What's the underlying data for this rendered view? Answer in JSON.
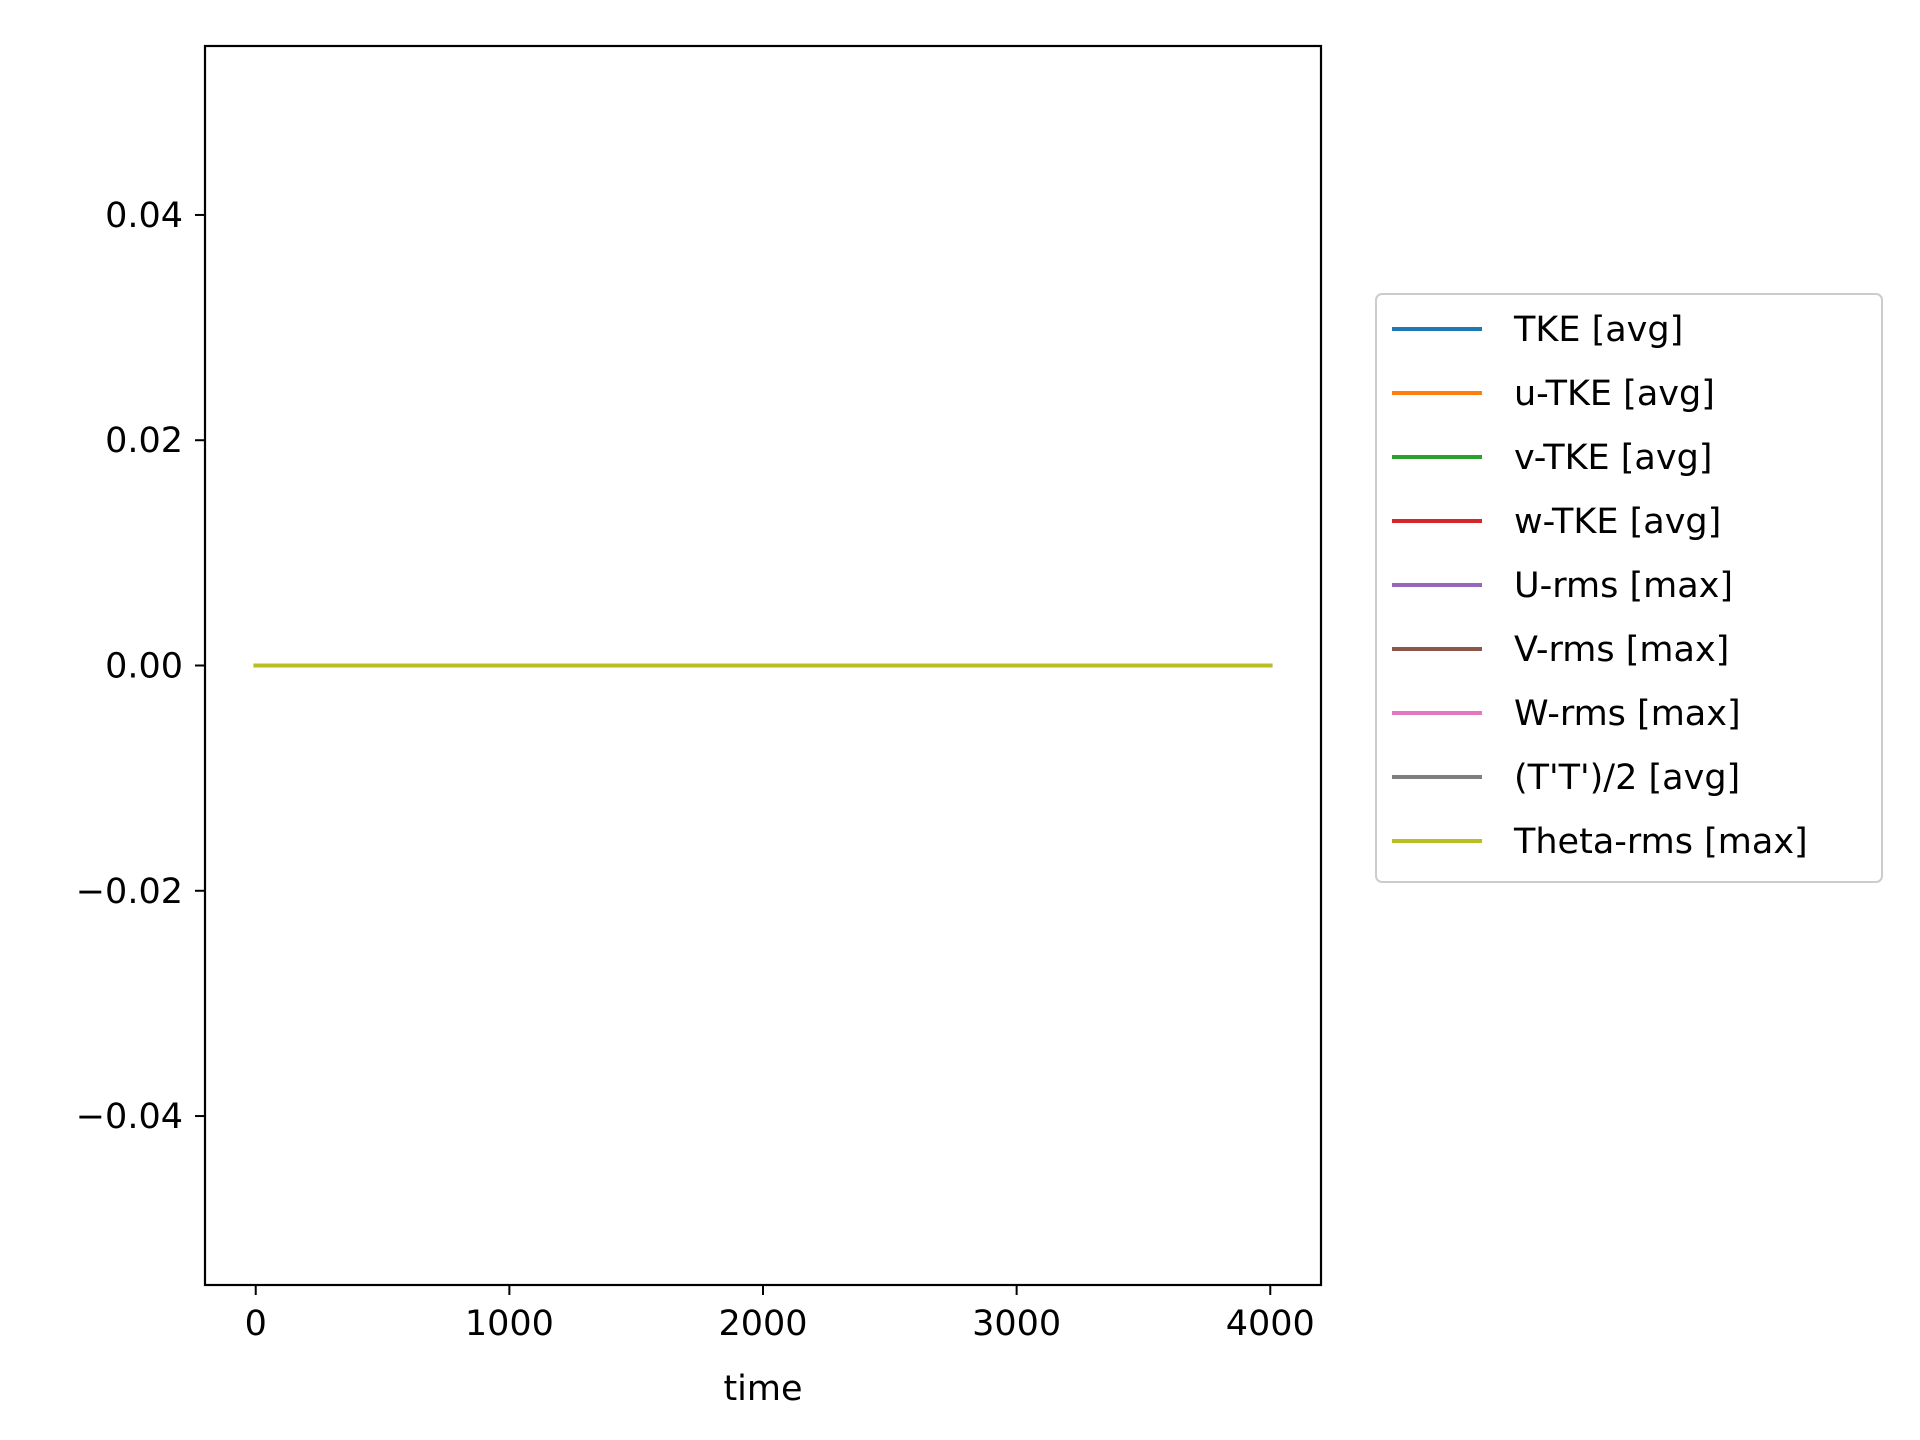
{
  "chart_data": {
    "type": "line",
    "title": "",
    "xlabel": "time",
    "ylabel": "",
    "xlim": [
      -200,
      4200
    ],
    "ylim": [
      -0.055,
      0.055
    ],
    "xticks": [
      0,
      1000,
      2000,
      3000,
      4000
    ],
    "xtick_labels": [
      "0",
      "1000",
      "2000",
      "3000",
      "4000"
    ],
    "yticks": [
      -0.04,
      -0.02,
      0.0,
      0.02,
      0.04
    ],
    "ytick_labels": [
      "−0.04",
      "−0.02",
      "0.00",
      "0.02",
      "0.04"
    ],
    "grid": false,
    "legend_position": "outside right",
    "x": [
      0,
      4000
    ],
    "series": [
      {
        "name": "TKE [avg]",
        "color": "#1f77b4",
        "values": [
          0,
          0
        ]
      },
      {
        "name": "u-TKE [avg]",
        "color": "#ff7f0e",
        "values": [
          0,
          0
        ]
      },
      {
        "name": "v-TKE [avg]",
        "color": "#2ca02c",
        "values": [
          0,
          0
        ]
      },
      {
        "name": "w-TKE [avg]",
        "color": "#d62728",
        "values": [
          0,
          0
        ]
      },
      {
        "name": "U-rms [max]",
        "color": "#9467bd",
        "values": [
          0,
          0
        ]
      },
      {
        "name": "V-rms [max]",
        "color": "#8c564b",
        "values": [
          0,
          0
        ]
      },
      {
        "name": "W-rms [max]",
        "color": "#e377c2",
        "values": [
          0,
          0
        ]
      },
      {
        "name": "(T'T')/2 [avg]",
        "color": "#7f7f7f",
        "values": [
          0,
          0
        ]
      },
      {
        "name": "Theta-rms [max]",
        "color": "#bcbd22",
        "values": [
          0,
          0
        ]
      }
    ]
  }
}
